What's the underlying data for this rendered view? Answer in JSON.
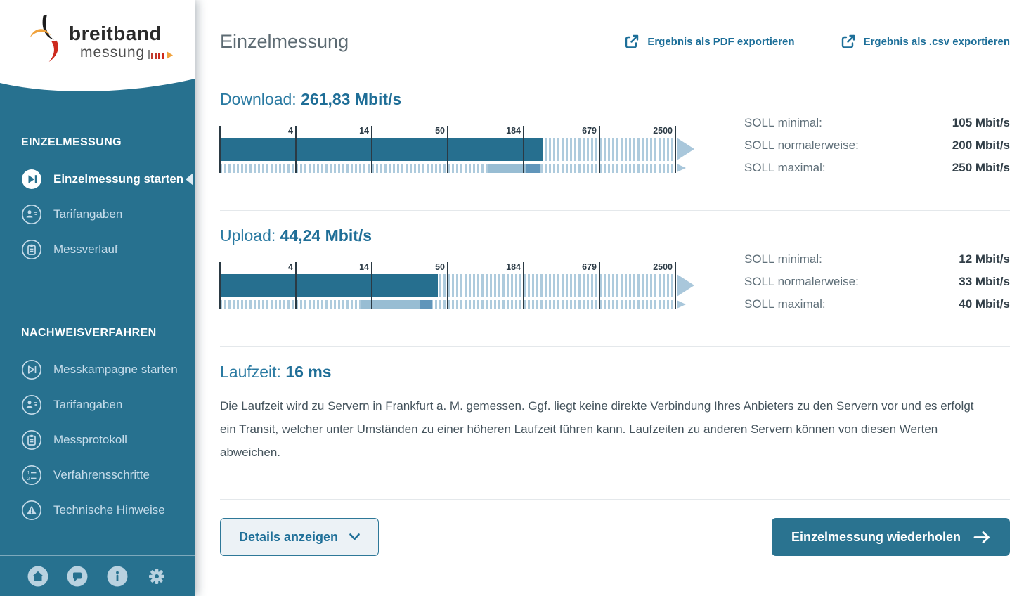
{
  "logo": {
    "line1": "breitband",
    "line2": "messung"
  },
  "sidebar": {
    "sections": [
      {
        "title": "EINZELMESSUNG",
        "items": [
          {
            "label": "Einzelmessung starten",
            "icon": "play-filled",
            "active": true
          },
          {
            "label": "Tarifangaben",
            "icon": "tariff",
            "active": false
          },
          {
            "label": "Messverlauf",
            "icon": "clipboard",
            "active": false
          }
        ]
      },
      {
        "title": "NACHWEISVERFAHREN",
        "items": [
          {
            "label": "Messkampagne starten",
            "icon": "play-outline",
            "active": false
          },
          {
            "label": "Tarifangaben",
            "icon": "tariff",
            "active": false
          },
          {
            "label": "Messprotokoll",
            "icon": "clipboard",
            "active": false
          },
          {
            "label": "Verfahrensschritte",
            "icon": "steps",
            "active": false
          },
          {
            "label": "Technische Hinweise",
            "icon": "warning",
            "active": false
          }
        ]
      }
    ],
    "footer_icons": [
      {
        "name": "home"
      },
      {
        "name": "chat"
      },
      {
        "name": "info"
      },
      {
        "name": "settings"
      }
    ]
  },
  "header": {
    "title": "Einzelmessung",
    "export_pdf_label": "Ergebnis als PDF exportieren",
    "export_csv_label": "Ergebnis als .csv exportieren"
  },
  "gauge_scale": {
    "tick_labels": [
      "4",
      "14",
      "50",
      "184",
      "679",
      "2500"
    ],
    "first_tick_value": 4,
    "last_tick_value": 2500
  },
  "download": {
    "heading": "Download:",
    "value_label": "261,83 Mbit/s",
    "value_mbits": 261.83,
    "soll_rows": [
      {
        "label": "SOLL minimal:",
        "value": "105 Mbit/s",
        "mbits": 105
      },
      {
        "label": "SOLL normalerweise:",
        "value": "200 Mbit/s",
        "mbits": 200
      },
      {
        "label": "SOLL maximal:",
        "value": "250 Mbit/s",
        "mbits": 250
      }
    ]
  },
  "upload": {
    "heading": "Upload:",
    "value_label": "44,24 Mbit/s",
    "value_mbits": 44.24,
    "soll_rows": [
      {
        "label": "SOLL minimal:",
        "value": "12 Mbit/s",
        "mbits": 12
      },
      {
        "label": "SOLL normalerweise:",
        "value": "33 Mbit/s",
        "mbits": 33
      },
      {
        "label": "SOLL maximal:",
        "value": "40 Mbit/s",
        "mbits": 40
      }
    ]
  },
  "latency": {
    "heading": "Laufzeit:",
    "value_label": "16 ms",
    "description": "Die Laufzeit wird zu Servern in Frankfurt a. M. gemessen. Ggf. liegt keine direkte Verbindung Ihres Anbieters zu den Servern vor und es erfolgt ein Transit, welcher unter Umständen zu einer höheren Laufzeit führen kann. Laufzeiten zu anderen Servern können von diesen Werten abweichen."
  },
  "actions": {
    "details_label": "Details anzeigen",
    "repeat_label": "Einzelmessung wiederholen"
  },
  "colors": {
    "sidebar_teal": "#27718f",
    "bar_fill": "#266f8f",
    "hatch": "#aecbdd",
    "soll_light": "#98bdd3",
    "soll_dark": "#6095ba",
    "accent_link": "#1d6f99"
  }
}
